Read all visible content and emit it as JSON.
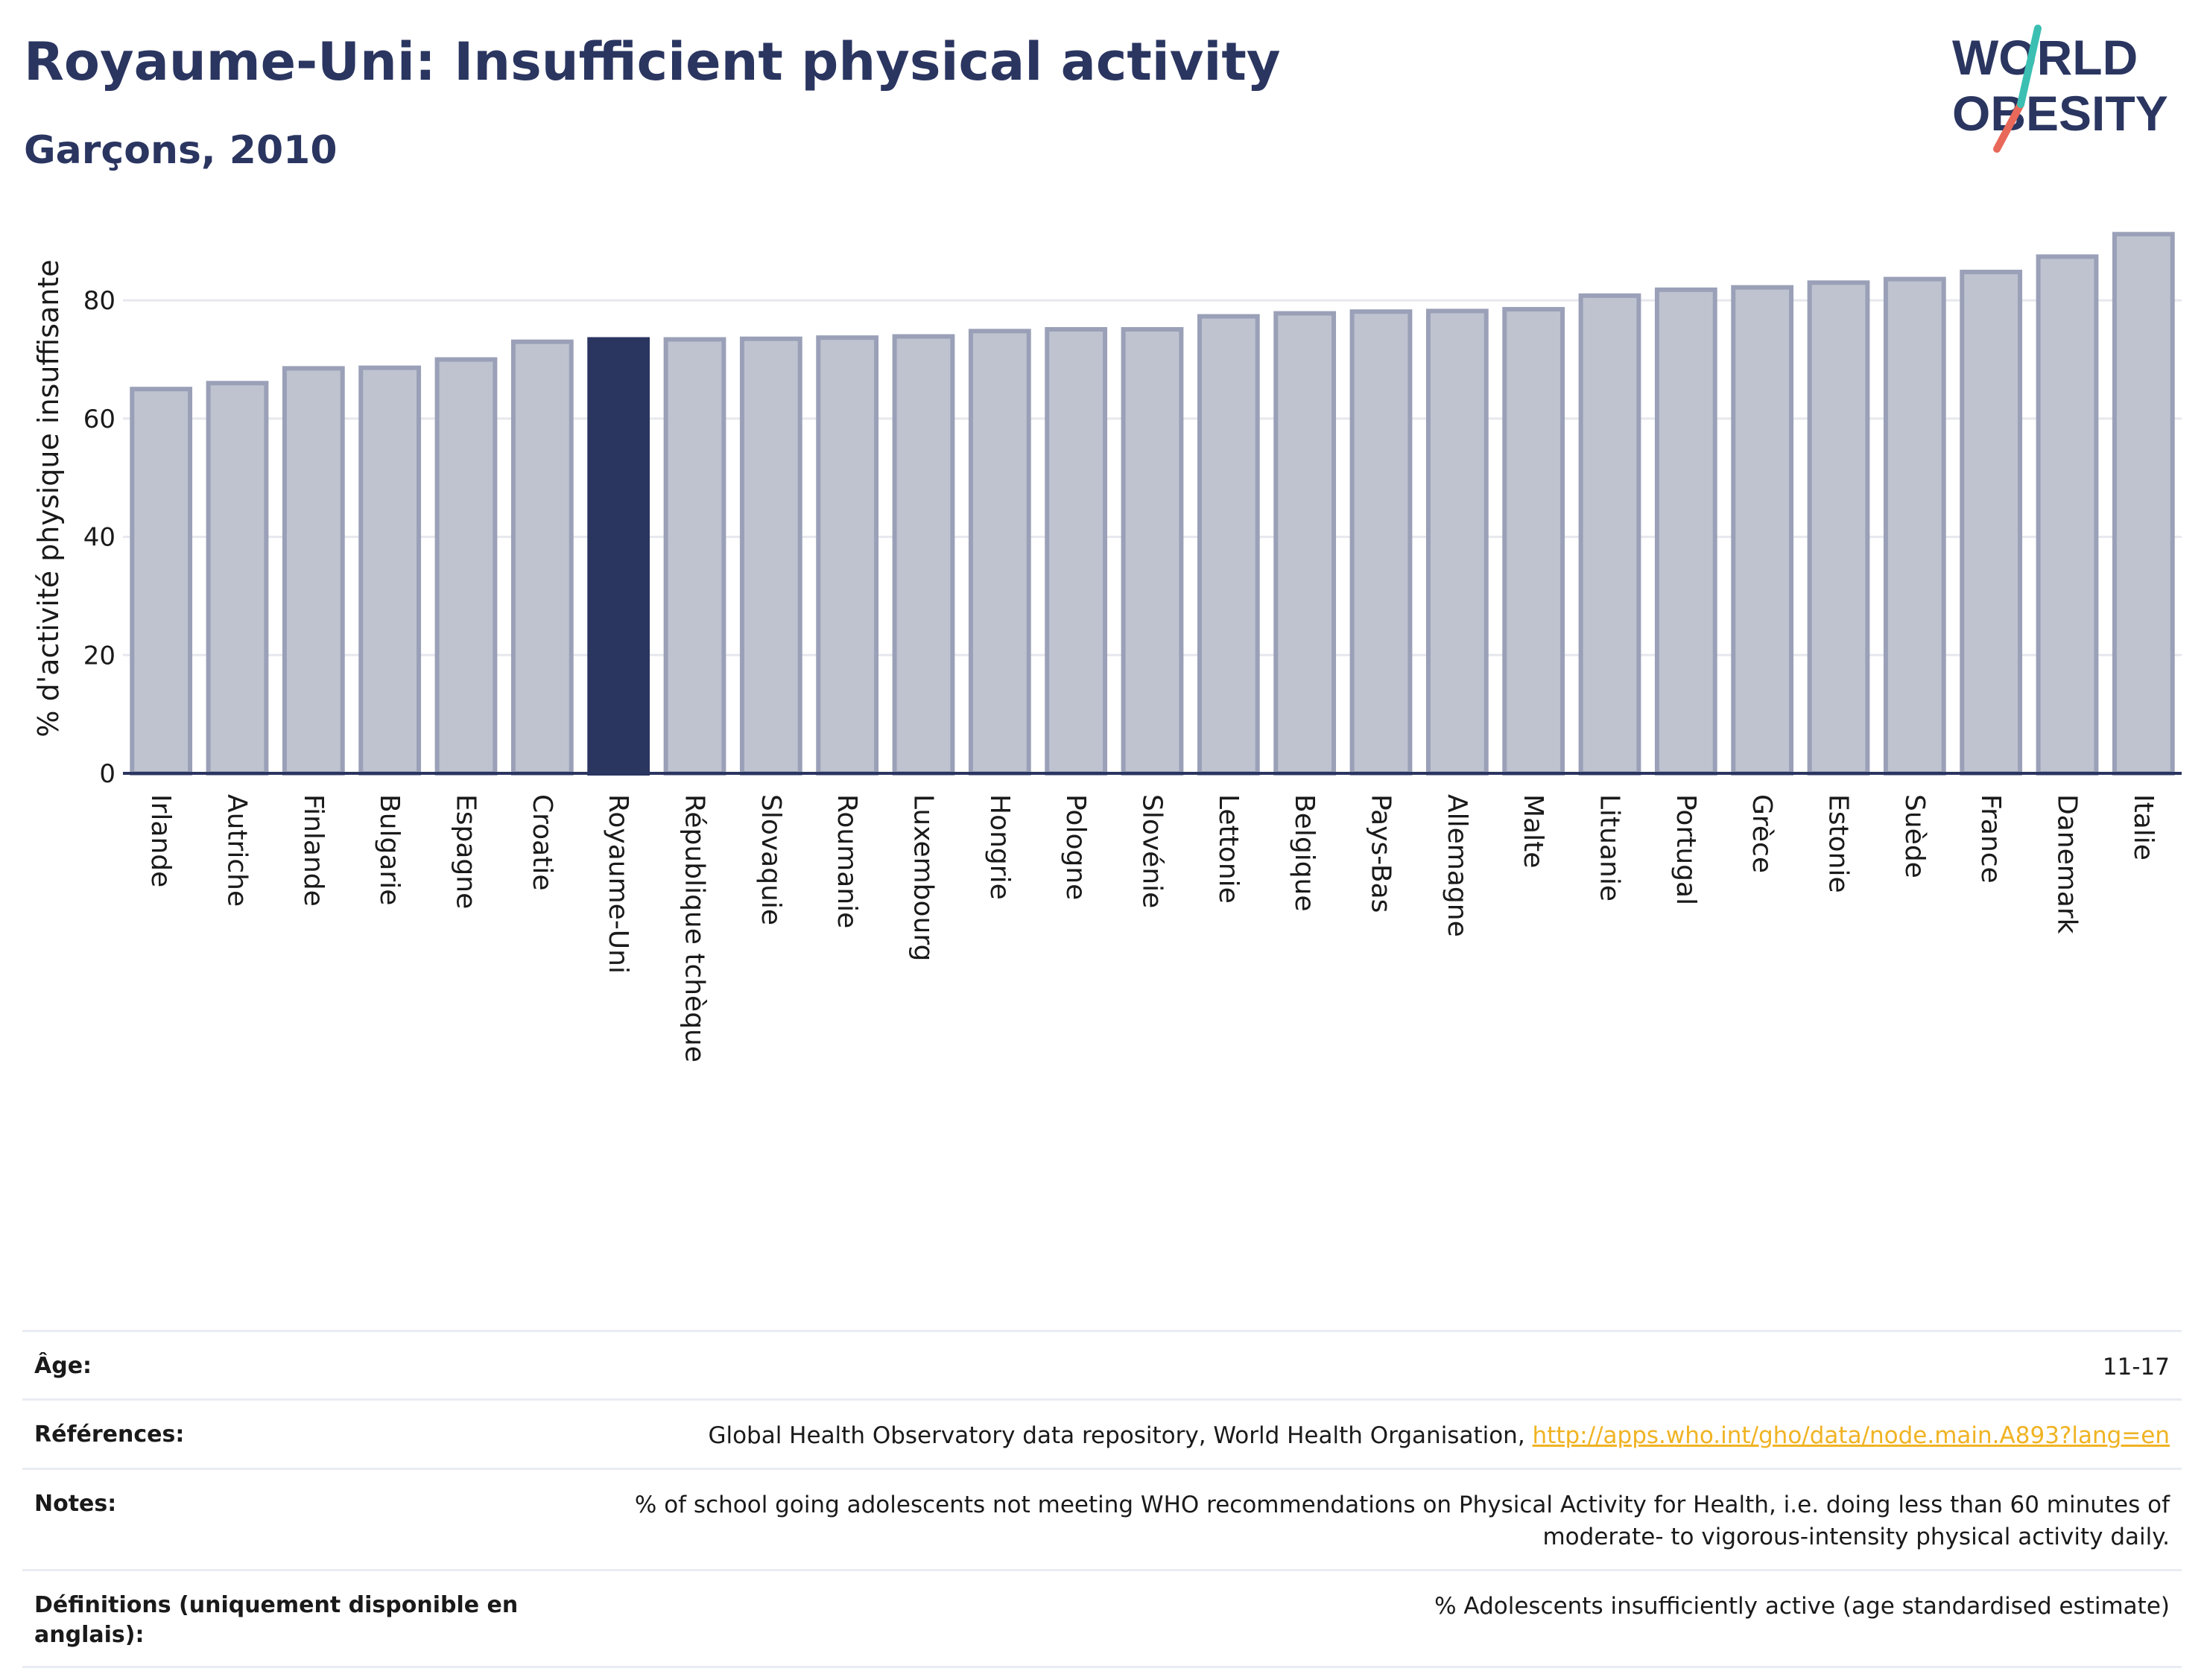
{
  "header": {
    "title": "Royaume-Uni: Insufficient physical activity",
    "subtitle": "Garçons, 2010"
  },
  "logo": {
    "line1": "WORLD",
    "line2": "OBESITY"
  },
  "chart_data": {
    "type": "bar",
    "ylabel": "% d'activité physique insuffisante",
    "xlabel": "",
    "ylim": [
      0,
      93
    ],
    "yticks": [
      0,
      20,
      40,
      60,
      80
    ],
    "grid": true,
    "highlight": "Royaume-Uni",
    "colors": {
      "bar": "#bfc3d0",
      "bar_edge": "#9aa0b7",
      "highlight": "#2a3560",
      "grid": "#e6e8ee",
      "axis": "#2a3560"
    },
    "categories": [
      "Irlande",
      "Autriche",
      "Finlande",
      "Bulgarie",
      "Espagne",
      "Croatie",
      "Royaume-Uni",
      "République tchèque",
      "Slovaquie",
      "Roumanie",
      "Luxembourg",
      "Hongrie",
      "Pologne",
      "Slovénie",
      "Lettonie",
      "Belgique",
      "Pays-Bas",
      "Allemagne",
      "Malte",
      "Lituanie",
      "Portugal",
      "Grèce",
      "Estonie",
      "Suède",
      "France",
      "Danemark",
      "Italie"
    ],
    "values": [
      65.0,
      66.0,
      68.5,
      68.6,
      70.0,
      73.0,
      73.4,
      73.4,
      73.5,
      73.7,
      73.9,
      74.8,
      75.1,
      75.1,
      77.3,
      77.8,
      78.1,
      78.2,
      78.5,
      80.8,
      81.8,
      82.2,
      83.0,
      83.6,
      84.8,
      87.4,
      91.2
    ]
  },
  "info": {
    "age_label": "Âge:",
    "age_value": "11-17",
    "refs_label": "Références:",
    "refs_text": "Global Health Observatory data repository, World Health Organisation, ",
    "refs_link": "http://apps.who.int/gho/data/node.main.A893?lang=en",
    "notes_label": "Notes:",
    "notes_value": "% of school going adolescents not meeting WHO recommendations on Physical Activity for Health, i.e. doing less than 60 minutes of moderate- to vigorous-intensity physical activity daily.",
    "defs_label": "Définitions (uniquement disponible en anglais):",
    "defs_value": "% Adolescents insufficiently active (age standardised estimate)"
  }
}
